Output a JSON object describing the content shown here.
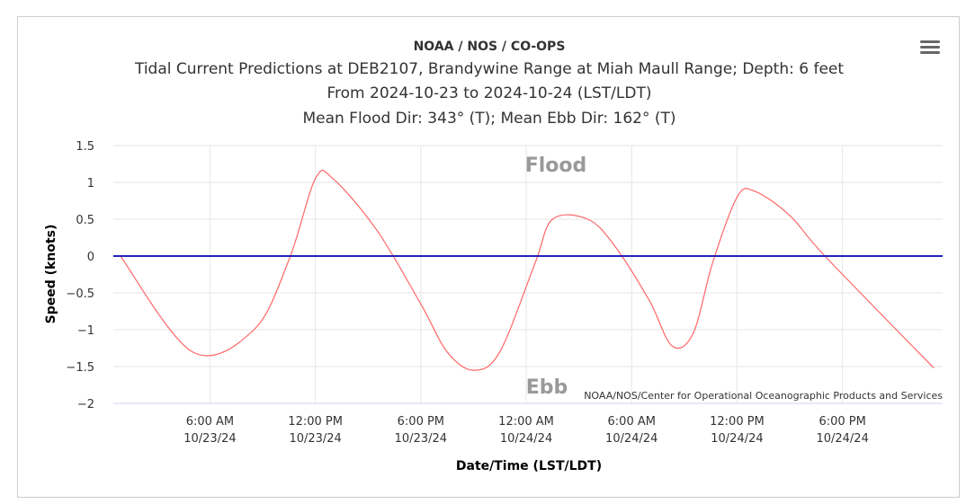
{
  "header": {
    "agency": "NOAA / NOS / CO-OPS",
    "title_line1": "Tidal Current Predictions at DEB2107, Brandywine Range at Miah Maull Range; Depth: 6 feet",
    "title_line2": "From 2024-10-23 to 2024-10-24 (LST/LDT)",
    "title_line3": "Mean Flood Dir: 343° (T); Mean Ebb Dir: 162° (T)"
  },
  "menu": {
    "icon": "hamburger-menu-icon"
  },
  "chart_data": {
    "type": "line",
    "title": "Tidal Current Predictions at DEB2107, Brandywine Range at Miah Maull Range; Depth: 6 feet",
    "xlabel": "Date/Time (LST/LDT)",
    "ylabel": "Speed (knots)",
    "ylim": [
      -2,
      1.5
    ],
    "yticks": [
      "1.5",
      "1",
      "0.5",
      "0",
      "−0.5",
      "−1",
      "−1.5",
      "−2"
    ],
    "ytick_values": [
      1.5,
      1,
      0.5,
      0,
      -0.5,
      -1,
      -1.5,
      -2
    ],
    "xlim_hours": [
      0.5,
      47.7
    ],
    "x_ticks": [
      {
        "hour": 6,
        "time": "6:00 AM",
        "date": "10/23/24"
      },
      {
        "hour": 12,
        "time": "12:00 PM",
        "date": "10/23/24"
      },
      {
        "hour": 18,
        "time": "6:00 PM",
        "date": "10/23/24"
      },
      {
        "hour": 24,
        "time": "12:00 AM",
        "date": "10/24/24"
      },
      {
        "hour": 30,
        "time": "6:00 AM",
        "date": "10/24/24"
      },
      {
        "hour": 36,
        "time": "12:00 PM",
        "date": "10/24/24"
      },
      {
        "hour": 42,
        "time": "6:00 PM",
        "date": "10/24/24"
      }
    ],
    "band_labels": {
      "flood": "Flood",
      "ebb": "Ebb"
    },
    "grid": true,
    "series": [
      {
        "color": "#ff6666",
        "x_hours": [
          0.9,
          5.0,
          8.5,
          10.5,
          12.0,
          13.0,
          15.5,
          18.0,
          19.5,
          21.0,
          22.5,
          24.5,
          25.5,
          27.5,
          29.0,
          31.0,
          32.3,
          33.5,
          34.6,
          36.0,
          37.0,
          39.0,
          41.0,
          47.2
        ],
        "speeds": [
          0.0,
          -1.3,
          -1.0,
          -0.05,
          1.05,
          1.05,
          0.35,
          -0.65,
          -1.3,
          -1.55,
          -1.3,
          -0.1,
          0.5,
          0.5,
          0.15,
          -0.6,
          -1.22,
          -1.05,
          -0.1,
          0.8,
          0.88,
          0.55,
          0.0,
          -1.52
        ]
      },
      {
        "color": "#2222bb",
        "x_hours": [
          0.5,
          47.7
        ],
        "speeds": [
          0,
          0
        ]
      }
    ],
    "credit": "NOAA/NOS/Center for Operational Oceanographic Products and Services"
  }
}
